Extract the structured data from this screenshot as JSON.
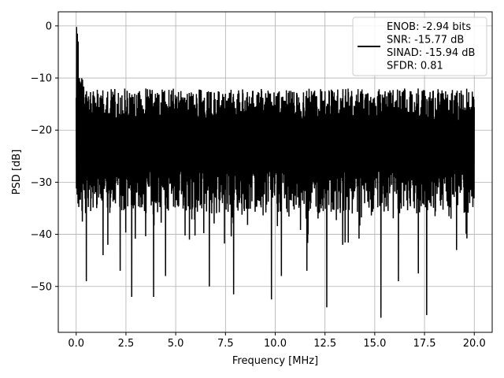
{
  "chart_data": {
    "type": "line",
    "title": "",
    "xlabel": "Frequency [MHz]",
    "ylabel": "PSD [dB]",
    "xlim": [
      -0.9,
      20.9
    ],
    "ylim": [
      -58.8,
      2.7
    ],
    "xticks": [
      0.0,
      2.5,
      5.0,
      7.5,
      10.0,
      12.5,
      15.0,
      17.5,
      20.0
    ],
    "xtick_labels": [
      "0.0",
      "2.5",
      "5.0",
      "7.5",
      "10.0",
      "12.5",
      "15.0",
      "17.5",
      "20.0"
    ],
    "yticks": [
      0,
      -10,
      -20,
      -30,
      -40,
      -50
    ],
    "ytick_labels": [
      "0",
      "−10",
      "−20",
      "−30",
      "−40",
      "−50"
    ],
    "grid": true,
    "line_color": "#000000",
    "legend": {
      "placement": "top-right",
      "lines": [
        "ENOB: -2.94 bits",
        "SNR: -15.77 dB",
        "SINAD: -15.94 dB",
        "SFDR: 0.81"
      ]
    },
    "series": [
      {
        "x_range": [
          0.0,
          20.0
        ],
        "envelope_top_db": -12,
        "typical_floor_db": -28,
        "peaks": [
          {
            "x": 0.02,
            "y": -0.2
          },
          {
            "x": 0.06,
            "y": -1.5
          },
          {
            "x": 0.1,
            "y": -3.0
          }
        ],
        "notable_dips": [
          {
            "x": 0.52,
            "y": -49
          },
          {
            "x": 1.35,
            "y": -44
          },
          {
            "x": 1.6,
            "y": -42
          },
          {
            "x": 2.2,
            "y": -47
          },
          {
            "x": 2.8,
            "y": -52
          },
          {
            "x": 3.9,
            "y": -52
          },
          {
            "x": 4.5,
            "y": -48
          },
          {
            "x": 5.7,
            "y": -41
          },
          {
            "x": 6.7,
            "y": -50
          },
          {
            "x": 7.9,
            "y": -51.5
          },
          {
            "x": 9.8,
            "y": -52.5
          },
          {
            "x": 10.3,
            "y": -48
          },
          {
            "x": 11.6,
            "y": -47
          },
          {
            "x": 12.6,
            "y": -54
          },
          {
            "x": 13.4,
            "y": -42
          },
          {
            "x": 15.3,
            "y": -56
          },
          {
            "x": 16.2,
            "y": -49
          },
          {
            "x": 17.2,
            "y": -47.5
          },
          {
            "x": 17.6,
            "y": -55.5
          },
          {
            "x": 19.1,
            "y": -43
          }
        ]
      }
    ]
  }
}
